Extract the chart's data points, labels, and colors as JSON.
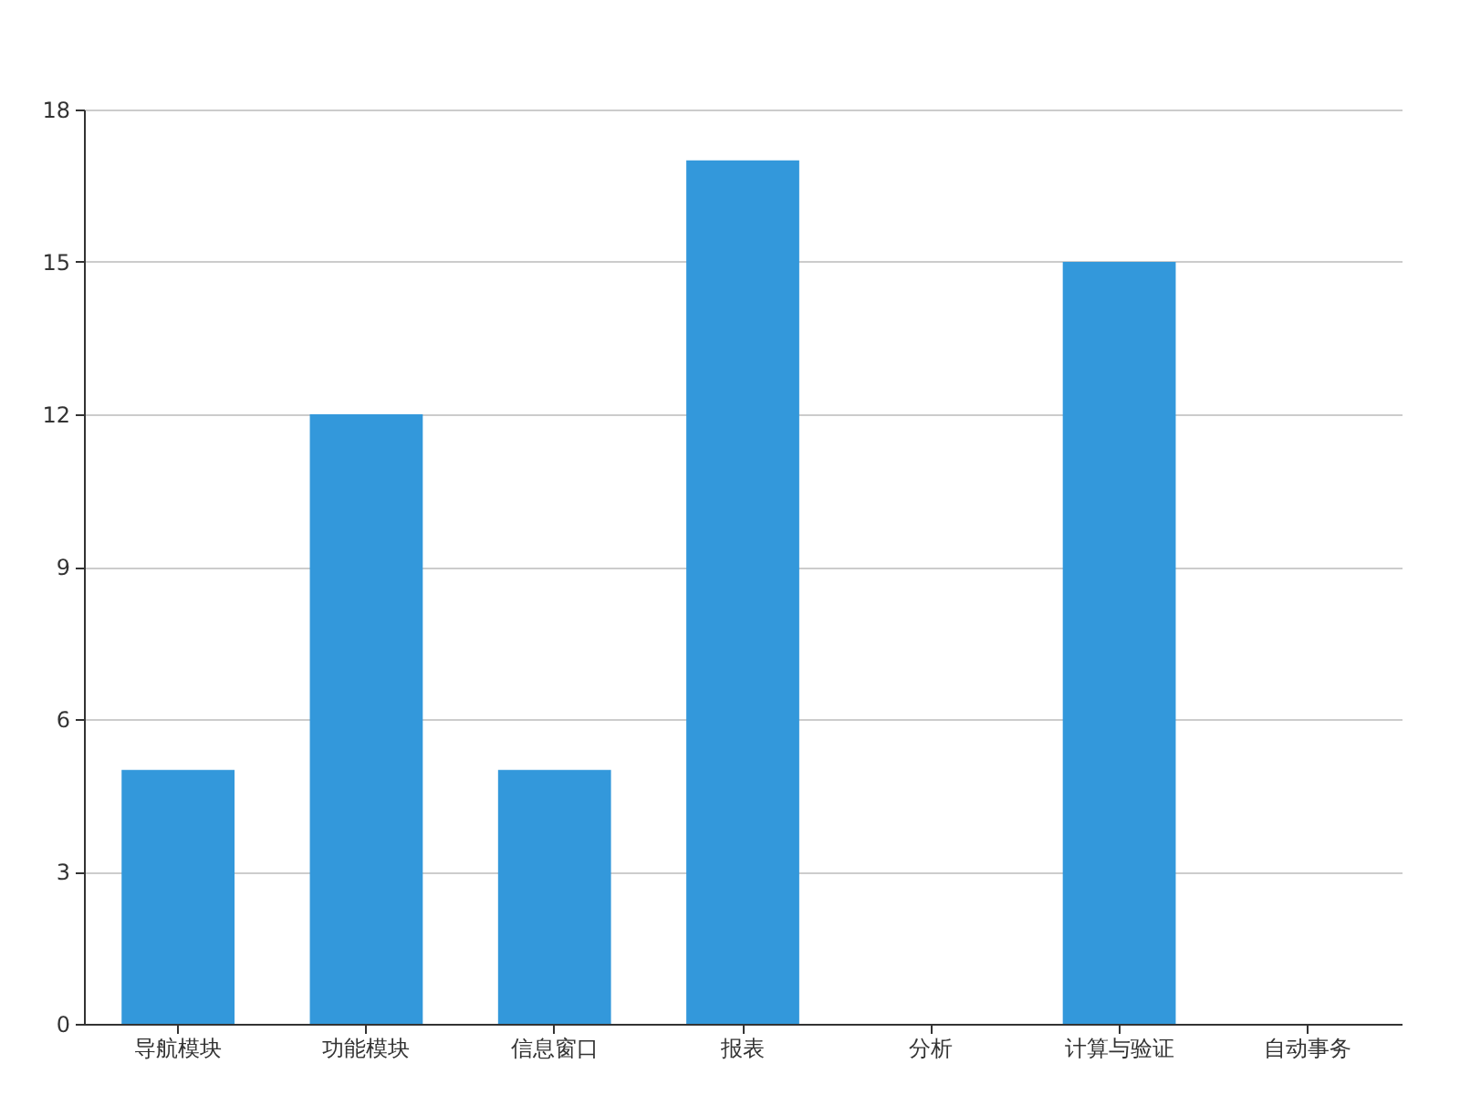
{
  "chart_data": {
    "type": "bar",
    "categories": [
      "导航模块",
      "功能模块",
      "信息窗口",
      "报表",
      "分析",
      "计算与验证",
      "自动事务"
    ],
    "values": [
      5,
      12,
      5,
      17,
      0,
      15,
      0
    ],
    "color": "#3398db",
    "ylim": [
      0,
      18
    ],
    "yticks": [
      0,
      3,
      6,
      9,
      12,
      15,
      18
    ],
    "grid": "y"
  }
}
